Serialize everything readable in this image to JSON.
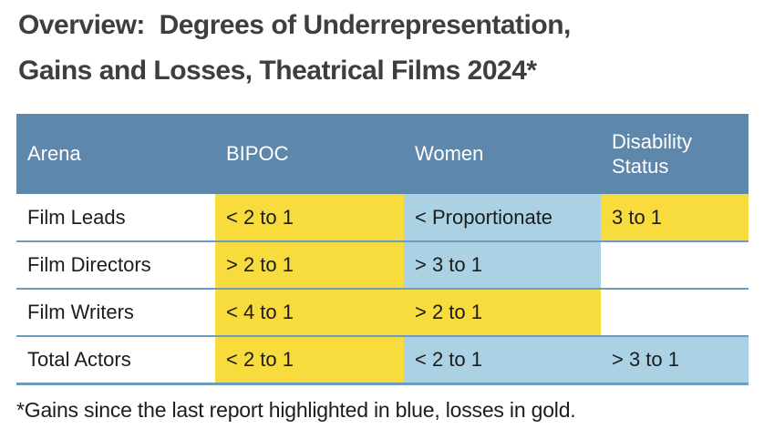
{
  "title": {
    "line1": "Overview:  Degrees of Underrepresentation,",
    "line2": "Gains and Losses, Theatrical Films 2024*"
  },
  "table": {
    "columns": [
      "Arena",
      "BIPOC",
      "Women",
      "Disability Status"
    ],
    "rows": [
      {
        "arena": "Film Leads",
        "cells": [
          {
            "text": "< 2 to 1",
            "highlight": "gold"
          },
          {
            "text": "< Proportionate",
            "highlight": "blue"
          },
          {
            "text": "3 to 1",
            "highlight": "gold"
          }
        ]
      },
      {
        "arena": "Film Directors",
        "cells": [
          {
            "text": "> 2 to 1",
            "highlight": "gold"
          },
          {
            "text": "> 3 to 1",
            "highlight": "blue"
          },
          {
            "text": "",
            "highlight": "none"
          }
        ]
      },
      {
        "arena": "Film Writers",
        "cells": [
          {
            "text": "< 4 to 1",
            "highlight": "gold"
          },
          {
            "text": "> 2 to 1",
            "highlight": "gold"
          },
          {
            "text": "",
            "highlight": "none"
          }
        ]
      },
      {
        "arena": "Total Actors",
        "cells": [
          {
            "text": "< 2 to 1",
            "highlight": "gold"
          },
          {
            "text": "< 2 to 1",
            "highlight": "blue"
          },
          {
            "text": "> 3 to 1",
            "highlight": "blue"
          }
        ]
      }
    ]
  },
  "footnote": "*Gains since the last report highlighted in blue, losses in gold.",
  "legend_meaning": {
    "blue": "gain since last report",
    "gold": "loss since last report"
  },
  "chart_data": {
    "type": "table",
    "title": "Overview: Degrees of Underrepresentation, Gains and Losses, Theatrical Films 2024*",
    "columns": [
      "Arena",
      "BIPOC",
      "Women",
      "Disability Status"
    ],
    "rows": [
      [
        "Film Leads",
        "< 2 to 1",
        "< Proportionate",
        "3 to 1"
      ],
      [
        "Film Directors",
        "> 2 to 1",
        "> 3 to 1",
        ""
      ],
      [
        "Film Writers",
        "< 4 to 1",
        "> 2 to 1",
        ""
      ],
      [
        "Total Actors",
        "< 2 to 1",
        "< 2 to 1",
        "> 3 to 1"
      ]
    ]
  },
  "colors": {
    "header_bg": "#5e87ac",
    "header_text": "#ffffff",
    "gold": "#f8db3d",
    "blue": "#abd2e4",
    "divider": "#6d9cbe",
    "title_text": "#3e3e3e",
    "body_text": "#1c1c1c"
  }
}
